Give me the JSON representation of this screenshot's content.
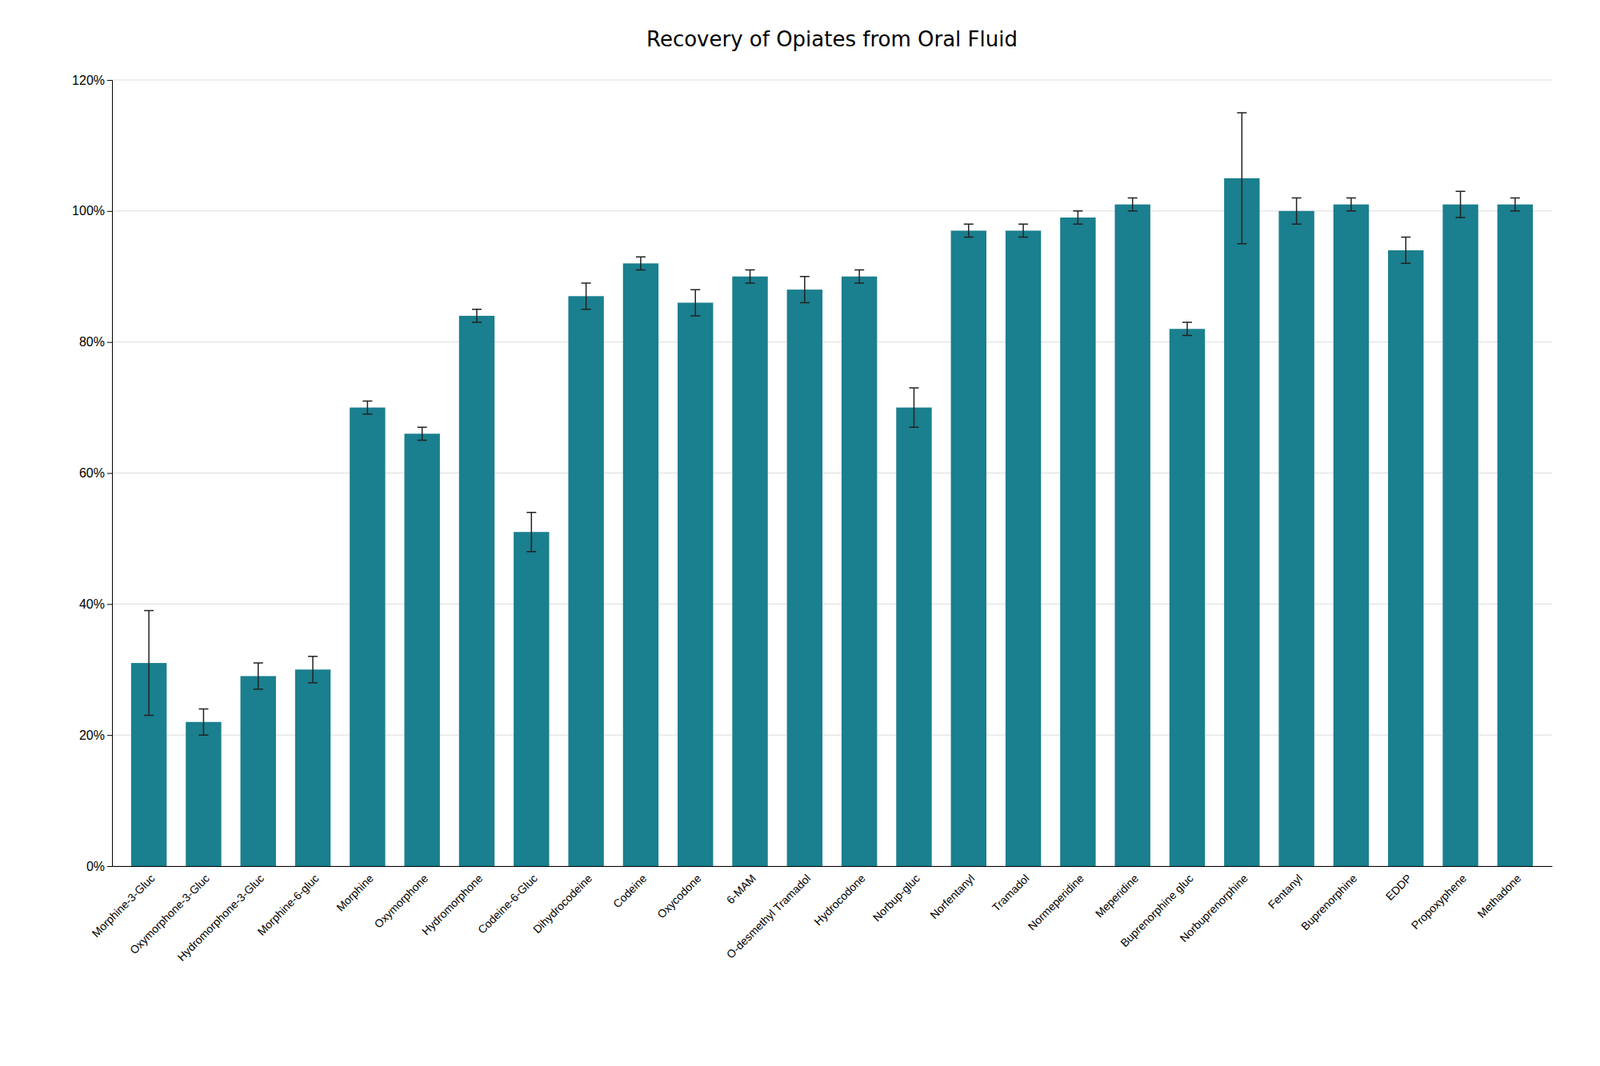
{
  "chart_data": {
    "type": "bar",
    "title": "Recovery of Opiates from Oral Fluid",
    "categories": [
      "Morphine-3-Gluc",
      "Oxymorphone-3-Gluc",
      "Hydromorphone-3-Gluc",
      "Morphine-6-gluc",
      "Morphine",
      "Oxymorphone",
      "Hydromorphone",
      "Codeine-6-Gluc",
      "Dihydrocodeine",
      "Codeine",
      "Oxycodone",
      "6-MAM",
      "O-desmethyl Tramadol",
      "Hydrocodone",
      "Norbup-gluc",
      "Norfentanyl",
      "Tramadol",
      "Normeperidine",
      "Meperidine",
      "Buprenorphine gluc",
      "Norbuprenorphine",
      "Fentanyl",
      "Buprenorphine",
      "EDDP",
      "Propoxyphene",
      "Methadone"
    ],
    "values": [
      31,
      22,
      29,
      30,
      70,
      66,
      84,
      51,
      87,
      92,
      86,
      90,
      88,
      90,
      70,
      97,
      97,
      99,
      101,
      82,
      105,
      100,
      101,
      94,
      101,
      101
    ],
    "errors": [
      8,
      2,
      2,
      2,
      1,
      1,
      1,
      3,
      2,
      1,
      2,
      1,
      2,
      1,
      3,
      1,
      1,
      1,
      1,
      1,
      10,
      2,
      1,
      2,
      2,
      1
    ],
    "color": "#1a7f8e",
    "ylim": [
      0,
      120
    ],
    "yticks": [
      {
        "value": 0,
        "label": "0%"
      },
      {
        "value": 20,
        "label": "20%"
      },
      {
        "value": 40,
        "label": "40%"
      },
      {
        "value": 60,
        "label": "60%"
      },
      {
        "value": 80,
        "label": "80%"
      },
      {
        "value": 100,
        "label": "100%"
      },
      {
        "value": 120,
        "label": "120%"
      }
    ],
    "grid": true
  }
}
